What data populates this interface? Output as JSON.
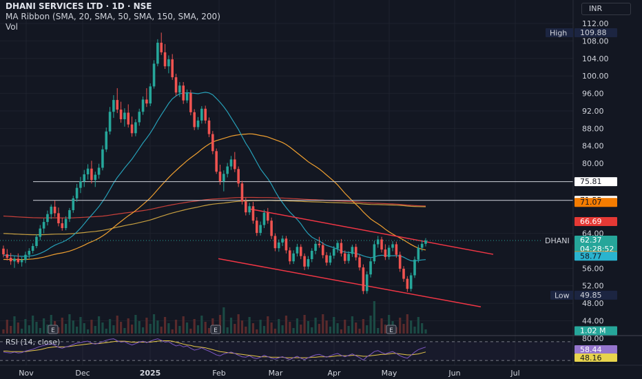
{
  "header": {
    "symbol_line": "DHANI SERVICES LTD · 1D · NSE",
    "ribbon_line": "MA Ribbon (SMA, 20, SMA, 50, SMA, 150, SMA, 200)",
    "vol_line": "Vol"
  },
  "currency_button": "INR",
  "rsi_legend": "RSI (14, close)",
  "colors": {
    "background": "#131722",
    "up": "#26a69a",
    "down": "#ef5350",
    "sma20": "#26a0b8",
    "sma50": "#f0a030",
    "sma150": "#c8a040",
    "sma200": "#c8403a",
    "channel": "#f23645",
    "rsi": "#7e57c2"
  },
  "chart_data": {
    "type": "candlestick",
    "y_ticks": [
      "112.00",
      "108.00",
      "104.00",
      "100.00",
      "96.00",
      "92.00",
      "88.00",
      "84.00",
      "80.00",
      "64.00",
      "56.00",
      "52.00",
      "48.00",
      "44.00"
    ],
    "y_tick_values": [
      112,
      108,
      104,
      100,
      96,
      92,
      88,
      84,
      80,
      64,
      56,
      52,
      48,
      44
    ],
    "ylim": [
      44,
      113
    ],
    "x_ticks": [
      "Nov",
      "Dec",
      "2025",
      "Feb",
      "Mar",
      "Apr",
      "May",
      "Jun",
      "Jul"
    ],
    "price_labels": [
      {
        "name": "high",
        "caption": "High",
        "text": "109.88",
        "value": 109.88,
        "style": "outline"
      },
      {
        "name": "level-75",
        "text": "75.81",
        "value": 75.81,
        "style": "white"
      },
      {
        "name": "level-71",
        "text": "71.55",
        "value": 71.55,
        "style": "white"
      },
      {
        "name": "sma200",
        "text": "71.07",
        "value": 71.07,
        "style": "orange"
      },
      {
        "name": "sma150",
        "text": "66.69",
        "value": 66.69,
        "style": "red"
      },
      {
        "name": "last",
        "caption": "DHANI",
        "text": "62.37",
        "sub": "04:28:52",
        "value": 62.37,
        "style": "teal"
      },
      {
        "name": "sma50",
        "text": "58.90",
        "value": 58.9,
        "style": "orange"
      },
      {
        "name": "sma20",
        "text": "58.77",
        "value": 58.77,
        "style": "cyan"
      },
      {
        "name": "low",
        "caption": "Low",
        "text": "49.85",
        "value": 49.85,
        "style": "outline"
      },
      {
        "name": "volume",
        "text": "1.02 M",
        "style": "teal"
      }
    ],
    "horizontal_levels": [
      75.81,
      71.55
    ],
    "earnings_markers": [
      "E",
      "E",
      "E"
    ],
    "candles": [
      [
        60.5,
        61.2,
        58.5,
        59.2
      ],
      [
        59.2,
        60.4,
        57.8,
        58.4
      ],
      [
        58.4,
        59.5,
        56.8,
        57.6
      ],
      [
        57.6,
        58.8,
        56.1,
        58.2
      ],
      [
        58.2,
        59.4,
        57.0,
        57.4
      ],
      [
        57.4,
        58.6,
        56.4,
        57.9
      ],
      [
        57.9,
        59.8,
        57.2,
        59.1
      ],
      [
        59.1,
        60.6,
        58.3,
        60.0
      ],
      [
        60.0,
        61.7,
        59.4,
        61.1
      ],
      [
        61.1,
        63.8,
        60.6,
        63.2
      ],
      [
        63.2,
        65.9,
        62.4,
        65.1
      ],
      [
        65.1,
        67.4,
        64.0,
        66.6
      ],
      [
        66.6,
        69.2,
        65.8,
        68.4
      ],
      [
        68.4,
        70.6,
        67.3,
        70.1
      ],
      [
        70.1,
        71.5,
        67.8,
        68.6
      ],
      [
        68.6,
        69.9,
        65.6,
        66.3
      ],
      [
        66.3,
        67.6,
        64.6,
        65.2
      ],
      [
        65.2,
        67.9,
        64.7,
        67.3
      ],
      [
        67.3,
        69.8,
        66.6,
        69.3
      ],
      [
        69.3,
        72.6,
        68.7,
        72.0
      ],
      [
        72.0,
        75.3,
        71.2,
        74.4
      ],
      [
        74.4,
        76.9,
        73.2,
        75.9
      ],
      [
        75.9,
        78.5,
        74.6,
        77.5
      ],
      [
        77.5,
        79.8,
        76.3,
        78.8
      ],
      [
        78.8,
        80.6,
        75.4,
        76.2
      ],
      [
        76.2,
        78.1,
        74.6,
        77.4
      ],
      [
        77.4,
        79.9,
        76.5,
        79.0
      ],
      [
        79.0,
        84.1,
        78.4,
        83.2
      ],
      [
        83.2,
        88.2,
        82.6,
        87.3
      ],
      [
        87.3,
        92.9,
        86.6,
        91.8
      ],
      [
        91.8,
        95.6,
        90.4,
        94.5
      ],
      [
        94.5,
        97.2,
        91.5,
        92.3
      ],
      [
        92.3,
        94.1,
        89.3,
        90.1
      ],
      [
        90.1,
        92.6,
        88.4,
        91.6
      ],
      [
        91.6,
        93.5,
        88.2,
        88.9
      ],
      [
        88.9,
        90.7,
        86.1,
        86.9
      ],
      [
        86.9,
        90.1,
        86.2,
        89.4
      ],
      [
        89.4,
        92.5,
        88.6,
        91.8
      ],
      [
        91.8,
        95.3,
        91.1,
        94.6
      ],
      [
        94.6,
        97.2,
        92.9,
        93.7
      ],
      [
        93.7,
        98.3,
        93.1,
        97.6
      ],
      [
        97.6,
        103.6,
        97.1,
        102.8
      ],
      [
        102.8,
        108.4,
        102.2,
        107.6
      ],
      [
        107.6,
        109.9,
        104.8,
        105.4
      ],
      [
        105.4,
        107.3,
        101.6,
        102.2
      ],
      [
        102.2,
        104.7,
        100.6,
        103.8
      ],
      [
        103.8,
        105.0,
        99.1,
        99.7
      ],
      [
        99.7,
        100.5,
        95.4,
        96.2
      ],
      [
        96.2,
        98.6,
        95.2,
        97.8
      ],
      [
        97.8,
        98.6,
        93.6,
        94.4
      ],
      [
        94.4,
        96.9,
        93.8,
        96.1
      ],
      [
        96.1,
        96.8,
        91.0,
        91.7
      ],
      [
        91.7,
        92.4,
        87.6,
        88.3
      ],
      [
        88.3,
        90.6,
        87.7,
        89.8
      ],
      [
        89.8,
        93.1,
        89.1,
        92.5
      ],
      [
        92.5,
        93.2,
        89.1,
        89.8
      ],
      [
        89.8,
        90.5,
        86.0,
        86.7
      ],
      [
        86.7,
        87.4,
        82.1,
        82.8
      ],
      [
        82.8,
        83.4,
        77.6,
        78.1
      ],
      [
        78.1,
        79.7,
        75.1,
        75.9
      ],
      [
        75.9,
        78.4,
        73.6,
        77.6
      ],
      [
        77.6,
        80.1,
        76.8,
        79.3
      ],
      [
        79.3,
        81.7,
        78.5,
        80.9
      ],
      [
        80.9,
        82.6,
        78.0,
        78.7
      ],
      [
        78.7,
        79.3,
        74.6,
        75.4
      ],
      [
        75.4,
        76.0,
        70.6,
        71.3
      ],
      [
        71.3,
        72.1,
        68.1,
        68.8
      ],
      [
        68.8,
        71.0,
        68.2,
        70.2
      ],
      [
        70.2,
        71.2,
        66.2,
        66.9
      ],
      [
        66.9,
        67.7,
        63.4,
        64.1
      ],
      [
        64.1,
        66.7,
        63.5,
        65.9
      ],
      [
        65.9,
        69.4,
        65.2,
        68.7
      ],
      [
        68.7,
        69.8,
        66.2,
        66.9
      ],
      [
        66.9,
        67.6,
        62.7,
        63.4
      ],
      [
        63.4,
        64.0,
        59.9,
        60.6
      ],
      [
        60.6,
        62.6,
        59.8,
        61.9
      ],
      [
        61.9,
        63.5,
        61.1,
        62.8
      ],
      [
        62.8,
        63.4,
        59.4,
        60.1
      ],
      [
        60.1,
        60.8,
        56.9,
        57.6
      ],
      [
        57.6,
        60.1,
        57.0,
        59.4
      ],
      [
        59.4,
        61.6,
        58.7,
        60.9
      ],
      [
        60.9,
        61.5,
        58.1,
        58.8
      ],
      [
        58.8,
        59.4,
        55.6,
        56.4
      ],
      [
        56.4,
        58.8,
        55.8,
        58.1
      ],
      [
        58.1,
        60.6,
        57.4,
        60.0
      ],
      [
        60.0,
        62.3,
        59.2,
        61.6
      ],
      [
        61.6,
        63.2,
        60.7,
        61.3
      ],
      [
        61.3,
        62.0,
        58.3,
        59.0
      ],
      [
        59.0,
        59.7,
        56.6,
        57.3
      ],
      [
        57.3,
        59.6,
        56.7,
        58.9
      ],
      [
        58.9,
        61.1,
        58.2,
        60.5
      ],
      [
        60.5,
        62.4,
        59.6,
        61.8
      ],
      [
        61.8,
        62.7,
        58.7,
        59.4
      ],
      [
        59.4,
        60.1,
        57.0,
        57.7
      ],
      [
        57.7,
        59.9,
        57.1,
        59.3
      ],
      [
        59.3,
        61.4,
        58.6,
        60.9
      ],
      [
        60.9,
        61.6,
        57.8,
        58.5
      ],
      [
        58.5,
        59.1,
        55.5,
        56.2
      ],
      [
        56.2,
        56.9,
        50.1,
        50.8
      ],
      [
        50.8,
        55.3,
        50.2,
        54.6
      ],
      [
        54.6,
        58.3,
        53.9,
        57.6
      ],
      [
        57.6,
        62.3,
        57.0,
        61.5
      ],
      [
        61.5,
        63.4,
        60.7,
        62.6
      ],
      [
        62.6,
        63.2,
        59.6,
        60.3
      ],
      [
        60.3,
        61.5,
        57.9,
        58.6
      ],
      [
        58.6,
        61.3,
        58.0,
        60.7
      ],
      [
        60.7,
        62.2,
        59.9,
        61.5
      ],
      [
        61.5,
        62.1,
        58.4,
        59.1
      ],
      [
        59.1,
        59.8,
        55.2,
        55.9
      ],
      [
        55.9,
        56.5,
        52.9,
        53.6
      ],
      [
        53.6,
        54.2,
        50.6,
        51.3
      ],
      [
        51.3,
        55.0,
        50.7,
        54.4
      ],
      [
        54.4,
        58.7,
        53.8,
        58.0
      ],
      [
        58.0,
        61.4,
        57.3,
        60.7
      ],
      [
        60.7,
        62.4,
        59.9,
        61.6
      ],
      [
        61.6,
        62.9,
        61.0,
        62.37
      ]
    ],
    "rsi": {
      "ylim": [
        20,
        80
      ],
      "levels": [
        70,
        30
      ],
      "values": [
        48,
        47,
        46,
        48,
        46,
        47,
        50,
        52,
        54,
        57,
        60,
        62,
        64,
        66,
        62,
        58,
        56,
        59,
        61,
        64,
        67,
        68,
        70,
        71,
        67,
        65,
        67,
        70,
        73,
        75,
        76,
        72,
        69,
        70,
        66,
        63,
        66,
        69,
        71,
        68,
        71,
        74,
        76,
        73,
        69,
        70,
        65,
        61,
        63,
        59,
        61,
        56,
        52,
        54,
        57,
        53,
        50,
        46,
        42,
        40,
        44,
        46,
        48,
        45,
        41,
        38,
        37,
        40,
        36,
        34,
        37,
        41,
        38,
        35,
        33,
        36,
        38,
        35,
        32,
        36,
        39,
        35,
        32,
        36,
        39,
        42,
        43,
        40,
        37,
        40,
        43,
        45,
        41,
        38,
        41,
        44,
        40,
        36,
        31,
        38,
        43,
        49,
        51,
        47,
        44,
        47,
        49,
        45,
        40,
        37,
        35,
        41,
        48,
        53,
        56,
        58.44
      ],
      "ma_values": [
        50,
        50,
        49,
        49,
        49,
        49,
        49,
        50,
        51,
        52,
        53,
        55,
        57,
        58,
        59,
        59,
        59,
        59,
        60,
        61,
        62,
        63,
        64,
        65,
        66,
        66,
        66,
        67,
        68,
        69,
        70,
        71,
        71,
        71,
        70,
        69,
        69,
        69,
        69,
        69,
        69,
        70,
        71,
        72,
        72,
        72,
        71,
        69,
        67,
        65,
        63,
        62,
        60,
        59,
        58,
        57,
        55,
        53,
        51,
        49,
        48,
        47,
        46,
        45,
        44,
        43,
        42,
        41,
        40,
        39,
        38,
        38,
        38,
        37,
        37,
        37,
        37,
        36,
        36,
        36,
        36,
        36,
        36,
        36,
        37,
        37,
        38,
        38,
        38,
        38,
        39,
        40,
        40,
        40,
        40,
        41,
        41,
        40,
        39,
        39,
        40,
        41,
        42,
        43,
        43,
        44,
        45,
        45,
        44,
        43,
        42,
        42,
        43,
        44,
        46,
        48.16
      ],
      "labels": [
        {
          "text": "58.44",
          "value": 58.44,
          "style": "purple"
        },
        {
          "text": "48.16",
          "value": 48.16,
          "style": "yellow"
        }
      ],
      "tick": "80.00"
    }
  }
}
